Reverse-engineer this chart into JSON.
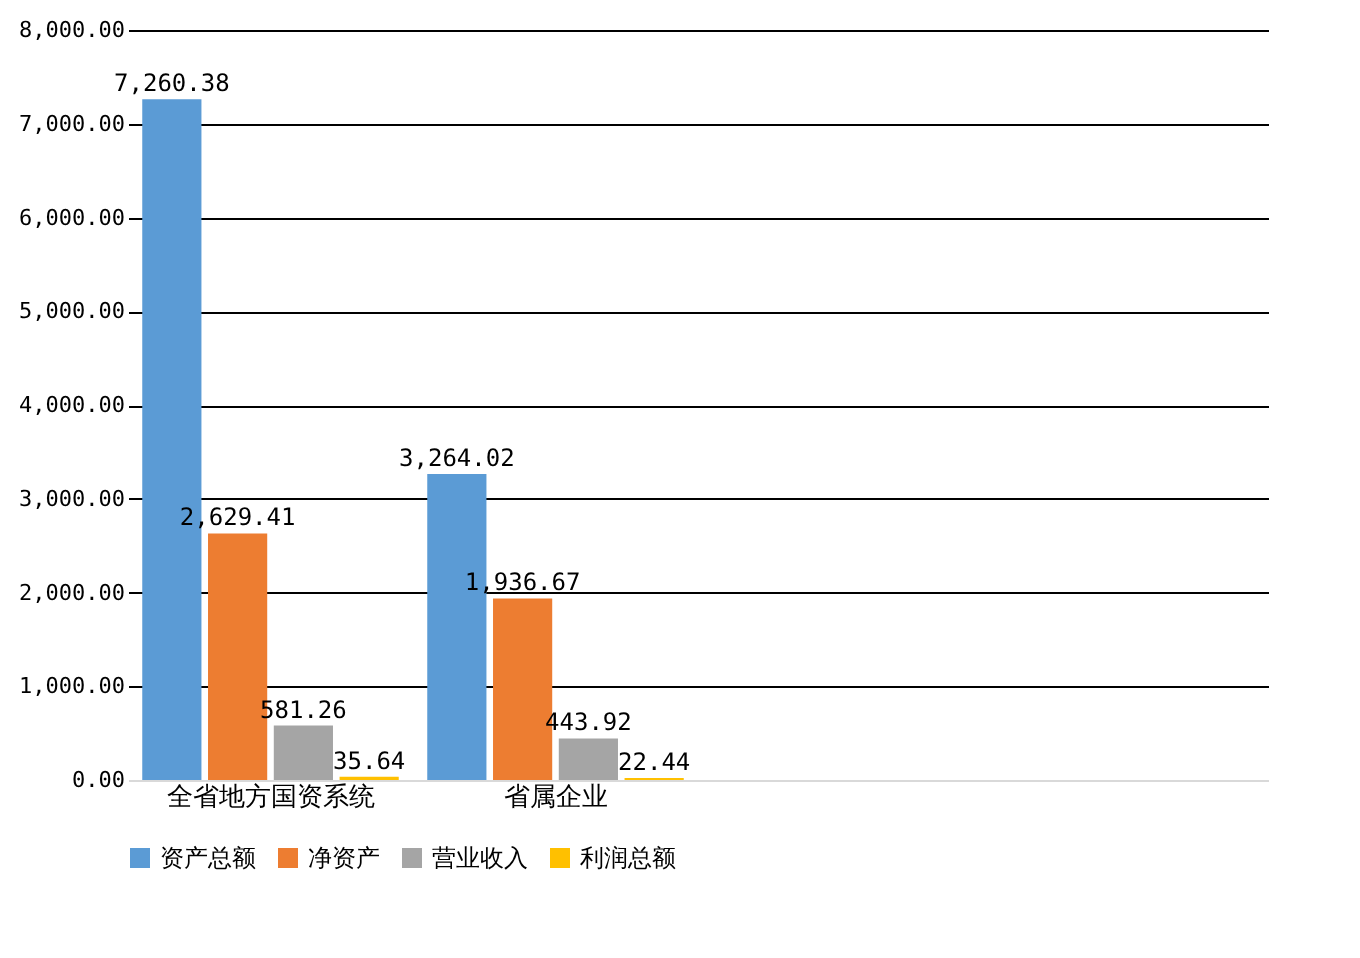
{
  "chart_data": {
    "type": "bar",
    "categories": [
      "全省地方国资系统",
      "省属企业",
      null,
      null
    ],
    "series": [
      {
        "name": "资产总额",
        "color": "#5b9bd5",
        "values": [
          7260.38,
          3264.02,
          null,
          null
        ],
        "value_labels": [
          "7,260.38",
          "3,264.02",
          null,
          null
        ]
      },
      {
        "name": "净资产",
        "color": "#ed7d31",
        "values": [
          2629.41,
          1936.67,
          null,
          null
        ],
        "value_labels": [
          "2,629.41",
          "1,936.67",
          null,
          null
        ]
      },
      {
        "name": "营业收入",
        "color": "#a5a5a5",
        "values": [
          581.26,
          443.92,
          null,
          null
        ],
        "value_labels": [
          "581.26",
          "443.92",
          null,
          null
        ]
      },
      {
        "name": "利润总额",
        "color": "#ffc000",
        "values": [
          35.64,
          22.44,
          null,
          null
        ],
        "value_labels": [
          "35.64",
          "22.44",
          null,
          null
        ]
      }
    ],
    "ylim": [
      0,
      8000
    ],
    "yticks": [
      {
        "value": 0,
        "label": "0.00"
      },
      {
        "value": 1000,
        "label": "1,000.00"
      },
      {
        "value": 2000,
        "label": "2,000.00"
      },
      {
        "value": 3000,
        "label": "3,000.00"
      },
      {
        "value": 4000,
        "label": "4,000.00"
      },
      {
        "value": 5000,
        "label": "5,000.00"
      },
      {
        "value": 6000,
        "label": "6,000.00"
      },
      {
        "value": 7000,
        "label": "7,000.00"
      },
      {
        "value": 8000,
        "label": "8,000.00"
      }
    ],
    "grid": "y",
    "legend": "bottom"
  }
}
